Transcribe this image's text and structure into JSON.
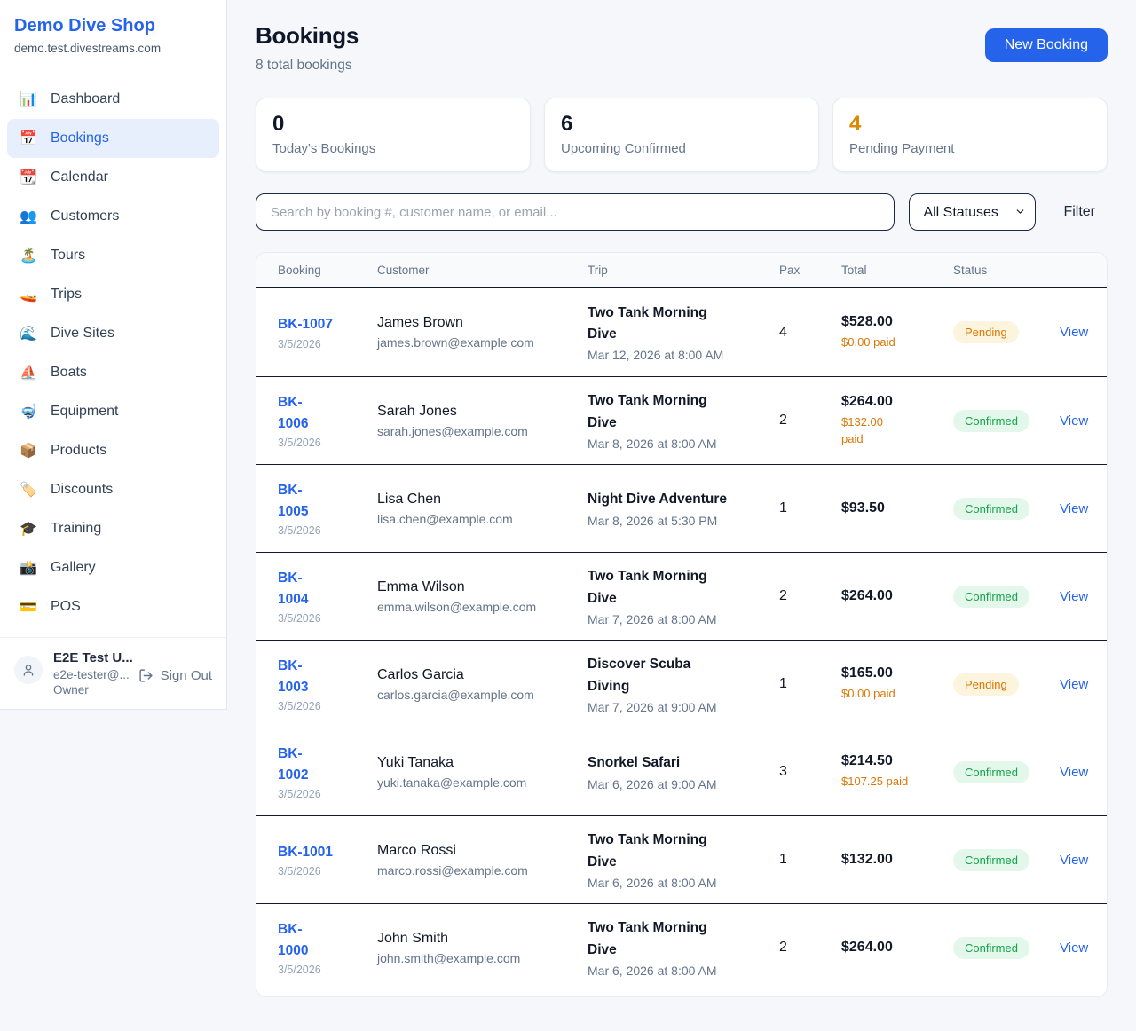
{
  "colors": {
    "accent": "#2563eb",
    "pending_bg": "#fdf4dd",
    "pending_text": "#d97706",
    "confirmed_bg": "#e3f8eb",
    "confirmed_text": "#16a34a",
    "paid_text": "#d97706",
    "dark_value": "#0f172a",
    "orange_value": "#e08706"
  },
  "sidebar": {
    "brand": {
      "name": "Demo Dive Shop",
      "domain": "demo.test.divestreams.com"
    },
    "items": [
      {
        "icon": "bar-chart-icon",
        "emoji": "📊",
        "label": "Dashboard",
        "active": false
      },
      {
        "icon": "calendar-icon",
        "emoji": "📅",
        "label": "Bookings",
        "active": true
      },
      {
        "icon": "tear-calendar-icon",
        "emoji": "📆",
        "label": "Calendar",
        "active": false
      },
      {
        "icon": "users-icon",
        "emoji": "👥",
        "label": "Customers",
        "active": false
      },
      {
        "icon": "island-icon",
        "emoji": "🏝️",
        "label": "Tours",
        "active": false
      },
      {
        "icon": "speedboat-icon",
        "emoji": "🚤",
        "label": "Trips",
        "active": false
      },
      {
        "icon": "wave-icon",
        "emoji": "🌊",
        "label": "Dive Sites",
        "active": false
      },
      {
        "icon": "sailboat-icon",
        "emoji": "⛵",
        "label": "Boats",
        "active": false
      },
      {
        "icon": "diving-mask-icon",
        "emoji": "🤿",
        "label": "Equipment",
        "active": false
      },
      {
        "icon": "package-icon",
        "emoji": "📦",
        "label": "Products",
        "active": false
      },
      {
        "icon": "tag-icon",
        "emoji": "🏷️",
        "label": "Discounts",
        "active": false
      },
      {
        "icon": "graduation-cap-icon",
        "emoji": "🎓",
        "label": "Training",
        "active": false
      },
      {
        "icon": "camera-icon",
        "emoji": "📸",
        "label": "Gallery",
        "active": false
      },
      {
        "icon": "credit-card-icon",
        "emoji": "💳",
        "label": "POS",
        "active": false
      }
    ],
    "user": {
      "name": "E2E Test U...",
      "email": "e2e-tester@...",
      "role": "Owner",
      "sign_out_label": "Sign Out"
    }
  },
  "header": {
    "title": "Bookings",
    "subtitle": "8 total bookings",
    "new_booking_label": "New Booking"
  },
  "stats": [
    {
      "value": "0",
      "label": "Today's Bookings",
      "color": "#0f172a"
    },
    {
      "value": "6",
      "label": "Upcoming Confirmed",
      "color": "#0f172a"
    },
    {
      "value": "4",
      "label": "Pending Payment",
      "color": "#e08706"
    }
  ],
  "filters": {
    "search_placeholder": "Search by booking #, customer name, or email...",
    "status_selected": "All Statuses",
    "filter_label": "Filter"
  },
  "table": {
    "columns": [
      "Booking",
      "Customer",
      "Trip",
      "Pax",
      "Total",
      "Status",
      ""
    ],
    "view_label": "View",
    "rows": [
      {
        "id": "BK-1007",
        "date": "3/5/2026",
        "customer": "James Brown",
        "email": "james.brown@example.com",
        "trip": "Two Tank Morning\nDive",
        "trip_date": "Mar 12, 2026 at 8:00 AM",
        "pax": "4",
        "total": "$528.00",
        "paid": "$0.00 paid",
        "status": "Pending"
      },
      {
        "id": "BK-\n1006",
        "date": "3/5/2026",
        "customer": "Sarah Jones",
        "email": "sarah.jones@example.com",
        "trip": "Two Tank Morning\nDive",
        "trip_date": "Mar 8, 2026 at 8:00 AM",
        "pax": "2",
        "total": "$264.00",
        "paid": "$132.00\npaid",
        "status": "Confirmed"
      },
      {
        "id": "BK-\n1005",
        "date": "3/5/2026",
        "customer": "Lisa Chen",
        "email": "lisa.chen@example.com",
        "trip": "Night Dive Adventure",
        "trip_date": "Mar 8, 2026 at 5:30 PM",
        "pax": "1",
        "total": "$93.50",
        "paid": "",
        "status": "Confirmed"
      },
      {
        "id": "BK-\n1004",
        "date": "3/5/2026",
        "customer": "Emma Wilson",
        "email": "emma.wilson@example.com",
        "trip": "Two Tank Morning\nDive",
        "trip_date": "Mar 7, 2026 at 8:00 AM",
        "pax": "2",
        "total": "$264.00",
        "paid": "",
        "status": "Confirmed"
      },
      {
        "id": "BK-\n1003",
        "date": "3/5/2026",
        "customer": "Carlos Garcia",
        "email": "carlos.garcia@example.com",
        "trip": "Discover Scuba\nDiving",
        "trip_date": "Mar 7, 2026 at 9:00 AM",
        "pax": "1",
        "total": "$165.00",
        "paid": "$0.00 paid",
        "status": "Pending"
      },
      {
        "id": "BK-\n1002",
        "date": "3/5/2026",
        "customer": "Yuki Tanaka",
        "email": "yuki.tanaka@example.com",
        "trip": "Snorkel Safari",
        "trip_date": "Mar 6, 2026 at 9:00 AM",
        "pax": "3",
        "total": "$214.50",
        "paid": "$107.25 paid",
        "status": "Confirmed"
      },
      {
        "id": "BK-1001",
        "date": "3/5/2026",
        "customer": "Marco Rossi",
        "email": "marco.rossi@example.com",
        "trip": "Two Tank Morning\nDive",
        "trip_date": "Mar 6, 2026 at 8:00 AM",
        "pax": "1",
        "total": "$132.00",
        "paid": "",
        "status": "Confirmed"
      },
      {
        "id": "BK-\n1000",
        "date": "3/5/2026",
        "customer": "John Smith",
        "email": "john.smith@example.com",
        "trip": "Two Tank Morning\nDive",
        "trip_date": "Mar 6, 2026 at 8:00 AM",
        "pax": "2",
        "total": "$264.00",
        "paid": "",
        "status": "Confirmed"
      }
    ]
  }
}
